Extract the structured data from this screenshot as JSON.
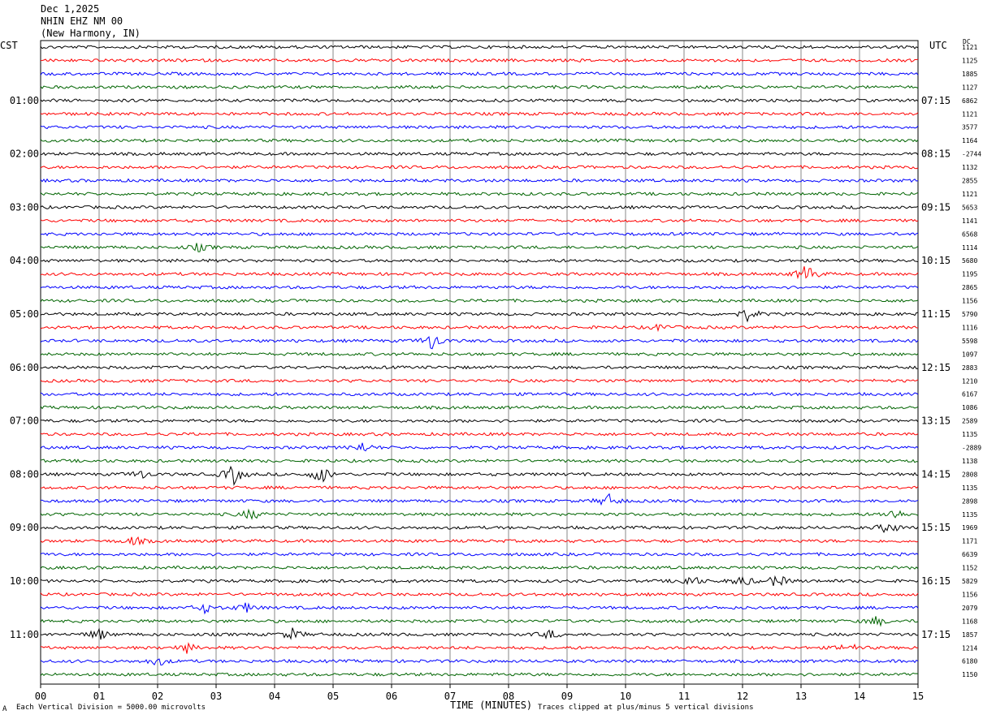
{
  "header": {
    "date": "Dec 1,2025",
    "station": "NHIN EHZ NM 00",
    "location": "(New Harmony, IN)"
  },
  "left_timezone": "CST",
  "right_timezone": "UTC",
  "dc_label": "DC",
  "footer": {
    "scale_note": "Each Vertical Division = 5000.00 microvolts",
    "clip_note": "Traces clipped at plus/minus 5 vertical divisions",
    "marker": "A"
  },
  "colors": {
    "black": "#000000",
    "red": "#ff0000",
    "blue": "#0000ff",
    "green": "#006400"
  },
  "chart_data": {
    "type": "line",
    "title": "NHIN EHZ NM 00",
    "xlabel": "TIME (MINUTES)",
    "xlim": [
      0,
      15
    ],
    "x_ticks": [
      "00",
      "01",
      "02",
      "03",
      "04",
      "05",
      "06",
      "07",
      "08",
      "09",
      "10",
      "11",
      "12",
      "13",
      "14",
      "15"
    ],
    "left_hour_labels": [
      "01:00",
      "02:00",
      "03:00",
      "04:00",
      "05:00",
      "06:00",
      "07:00",
      "08:00",
      "09:00",
      "10:00",
      "11:00"
    ],
    "right_hour_labels": [
      "07:15",
      "08:15",
      "09:15",
      "10:15",
      "11:15",
      "12:15",
      "13:15",
      "14:15",
      "15:15",
      "16:15",
      "17:15"
    ],
    "trace_color_cycle": [
      "black",
      "red",
      "blue",
      "green"
    ],
    "dc_offsets": [
      "1121",
      "1125",
      "1885",
      "1127",
      "6862",
      "1121",
      "3577",
      "1164",
      "-2744",
      "1132",
      "2855",
      "1121",
      "5653",
      "1141",
      "6568",
      "1114",
      "5680",
      "1195",
      "2865",
      "1156",
      "5790",
      "1116",
      "5598",
      "1097",
      "2883",
      "1210",
      "6167",
      "1086",
      "2589",
      "1135",
      "-2889",
      "1138",
      "2808",
      "1135",
      "2898",
      "1135",
      "1969",
      "1171",
      "6639",
      "1152",
      "5829",
      "1156",
      "2079",
      "1168",
      "1857",
      "1214",
      "6180",
      "1150"
    ],
    "events": [
      {
        "trace": 15,
        "minute": 2.7,
        "amp": 0.35
      },
      {
        "trace": 17,
        "minute": 13.1,
        "amp": 0.9
      },
      {
        "trace": 20,
        "minute": 12.1,
        "amp": 0.6
      },
      {
        "trace": 21,
        "minute": 10.6,
        "amp": 0.3
      },
      {
        "trace": 22,
        "minute": 6.7,
        "amp": 0.8
      },
      {
        "trace": 30,
        "minute": 5.5,
        "amp": 0.45
      },
      {
        "trace": 32,
        "minute": 3.3,
        "amp": 0.9
      },
      {
        "trace": 32,
        "minute": 4.8,
        "amp": 0.8
      },
      {
        "trace": 32,
        "minute": 1.7,
        "amp": 0.4
      },
      {
        "trace": 34,
        "minute": 9.7,
        "amp": 0.6
      },
      {
        "trace": 35,
        "minute": 3.6,
        "amp": 0.5
      },
      {
        "trace": 35,
        "minute": 14.6,
        "amp": 0.5
      },
      {
        "trace": 36,
        "minute": 14.5,
        "amp": 0.6
      },
      {
        "trace": 37,
        "minute": 1.6,
        "amp": 0.4
      },
      {
        "trace": 40,
        "minute": 11.1,
        "amp": 0.6
      },
      {
        "trace": 40,
        "minute": 12.6,
        "amp": 0.6
      },
      {
        "trace": 40,
        "minute": 12.0,
        "amp": 0.5
      },
      {
        "trace": 42,
        "minute": 2.8,
        "amp": 0.4
      },
      {
        "trace": 42,
        "minute": 3.5,
        "amp": 0.4
      },
      {
        "trace": 43,
        "minute": 14.3,
        "amp": 0.45
      },
      {
        "trace": 44,
        "minute": 1.0,
        "amp": 0.5
      },
      {
        "trace": 44,
        "minute": 4.3,
        "amp": 0.5
      },
      {
        "trace": 44,
        "minute": 8.7,
        "amp": 0.4
      },
      {
        "trace": 45,
        "minute": 2.5,
        "amp": 0.4
      },
      {
        "trace": 45,
        "minute": 13.8,
        "amp": 0.4
      },
      {
        "trace": 46,
        "minute": 2.0,
        "amp": 0.4
      }
    ]
  }
}
